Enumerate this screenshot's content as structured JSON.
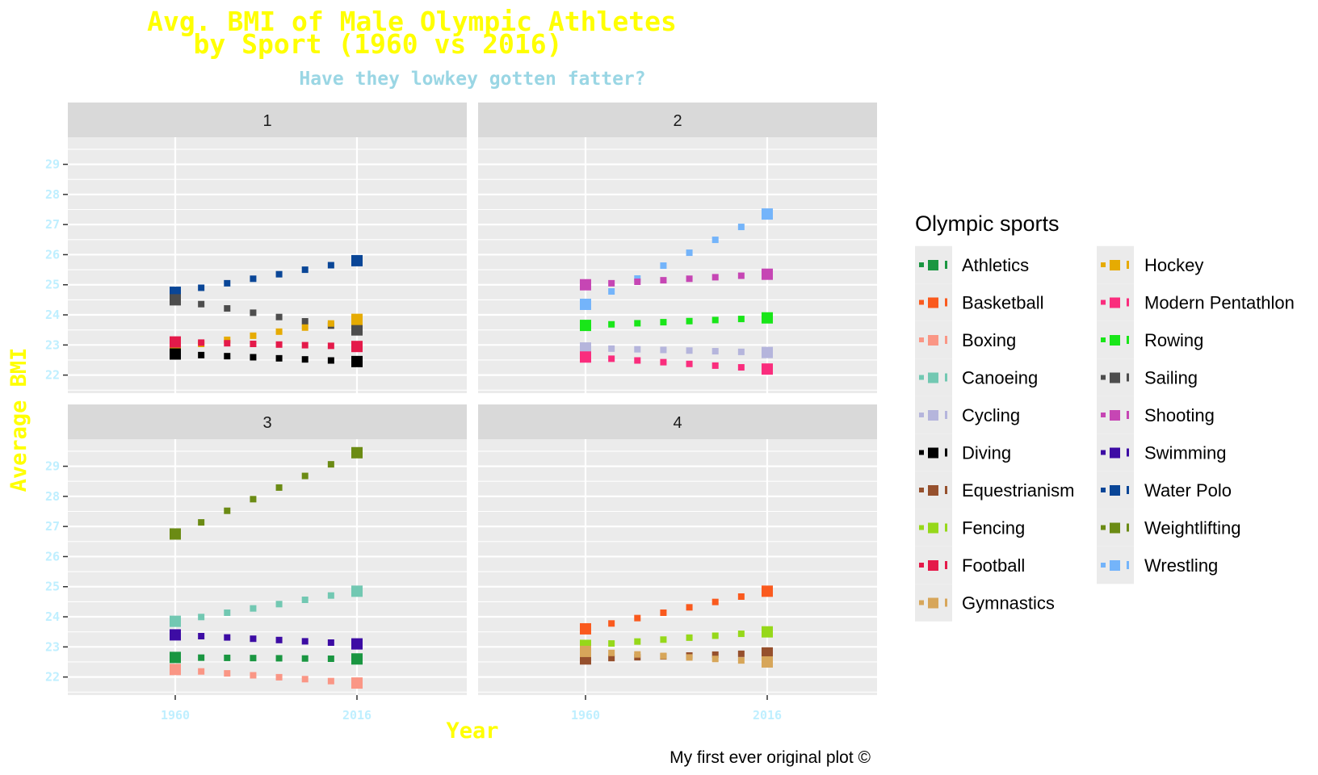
{
  "chart_data": {
    "type": "line",
    "title_lines": [
      "Avg. BMI of Male Olympic Athletes",
      "by Sport (1960 vs 2016)"
    ],
    "subtitle": "Have they lowkey gotten fatter?",
    "xlabel": "Year",
    "ylabel": "Average BMI",
    "caption": "My first ever original plot ©",
    "x_ticks": [
      "1960",
      "2016"
    ],
    "y_ticks": [
      "22",
      "23",
      "24",
      "25",
      "26",
      "27",
      "28",
      "29"
    ],
    "ylim": [
      21.4,
      29.9
    ],
    "line_style": "dotted square markers connecting 1960 and 2016 values",
    "legend": {
      "title": "Olympic sports",
      "placement": "right"
    },
    "panels": [
      {
        "label": "1",
        "series": [
          {
            "name": "Water Polo",
            "color": "#0a4697",
            "values": [
              24.75,
              25.8
            ]
          },
          {
            "name": "Sailing",
            "color": "#4d4d4d",
            "values": [
              24.5,
              23.5
            ]
          },
          {
            "name": "Hockey",
            "color": "#e6ab02",
            "values": [
              22.9,
              23.85
            ]
          },
          {
            "name": "Football",
            "color": "#e41a4a",
            "values": [
              23.1,
              22.95
            ]
          },
          {
            "name": "Diving",
            "color": "#000000",
            "values": [
              22.7,
              22.45
            ]
          }
        ]
      },
      {
        "label": "2",
        "series": [
          {
            "name": "Wrestling",
            "color": "#74b4fa",
            "values": [
              24.35,
              27.35
            ]
          },
          {
            "name": "Shooting",
            "color": "#c646b4",
            "values": [
              25.0,
              25.35
            ]
          },
          {
            "name": "Rowing",
            "color": "#19e619",
            "values": [
              23.65,
              23.9
            ]
          },
          {
            "name": "Cycling",
            "color": "#b5b5dc",
            "values": [
              22.9,
              22.75
            ]
          },
          {
            "name": "Modern Pentathlon",
            "color": "#fa2d7d",
            "values": [
              22.6,
              22.2
            ]
          }
        ]
      },
      {
        "label": "3",
        "series": [
          {
            "name": "Weightlifting",
            "color": "#6b8b14",
            "values": [
              26.75,
              29.45
            ]
          },
          {
            "name": "Canoeing",
            "color": "#72c8b2",
            "values": [
              23.85,
              24.85
            ]
          },
          {
            "name": "Swimming",
            "color": "#3d0ca4",
            "values": [
              23.4,
              23.1
            ]
          },
          {
            "name": "Athletics",
            "color": "#1a9641",
            "values": [
              22.65,
              22.6
            ]
          },
          {
            "name": "Boxing",
            "color": "#fa9685",
            "values": [
              22.25,
              21.8
            ]
          }
        ]
      },
      {
        "label": "4",
        "series": [
          {
            "name": "Basketball",
            "color": "#fa5a1e",
            "values": [
              23.6,
              24.85
            ]
          },
          {
            "name": "Fencing",
            "color": "#96d81a",
            "values": [
              23.05,
              23.5
            ]
          },
          {
            "name": "Equestrianism",
            "color": "#96502d",
            "values": [
              22.6,
              22.8
            ]
          },
          {
            "name": "Gymnastics",
            "color": "#d7a65a",
            "values": [
              22.85,
              22.5
            ]
          }
        ]
      }
    ],
    "legend_items": [
      {
        "name": "Athletics",
        "color": "#1a9641"
      },
      {
        "name": "Basketball",
        "color": "#fa5a1e"
      },
      {
        "name": "Boxing",
        "color": "#fa9685"
      },
      {
        "name": "Canoeing",
        "color": "#72c8b2"
      },
      {
        "name": "Cycling",
        "color": "#b5b5dc"
      },
      {
        "name": "Diving",
        "color": "#000000"
      },
      {
        "name": "Equestrianism",
        "color": "#96502d"
      },
      {
        "name": "Fencing",
        "color": "#96d81a"
      },
      {
        "name": "Football",
        "color": "#e41a4a"
      },
      {
        "name": "Gymnastics",
        "color": "#d7a65a"
      },
      {
        "name": "Hockey",
        "color": "#e6ab02"
      },
      {
        "name": "Modern Pentathlon",
        "color": "#fa2d7d"
      },
      {
        "name": "Rowing",
        "color": "#19e619"
      },
      {
        "name": "Sailing",
        "color": "#4d4d4d"
      },
      {
        "name": "Shooting",
        "color": "#c646b4"
      },
      {
        "name": "Swimming",
        "color": "#3d0ca4"
      },
      {
        "name": "Water Polo",
        "color": "#0a4697"
      },
      {
        "name": "Weightlifting",
        "color": "#6b8b14"
      },
      {
        "name": "Wrestling",
        "color": "#74b4fa"
      }
    ]
  }
}
